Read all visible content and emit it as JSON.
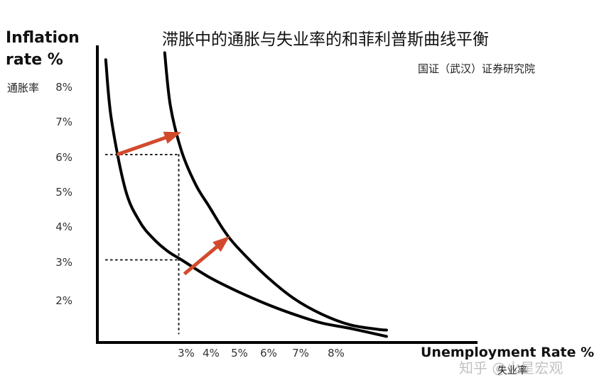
{
  "chart_data": {
    "type": "line",
    "title": "滞胀中的通胀与失业率的和菲利普斯曲线平衡",
    "subtitle": "国证（武汉）证券研究院",
    "ylabel_lines": [
      "Inflation",
      "rate %"
    ],
    "ylabel_cn": "通胀率",
    "xlabel": "Unemployment Rate %",
    "xlabel_cn": "失业率",
    "y_ticks": [
      "8%",
      "7%",
      "6%",
      "5%",
      "4%",
      "3%",
      "2%"
    ],
    "x_ticks": [
      "3%",
      "4%",
      "5%",
      "6%",
      "7%",
      "8%"
    ],
    "xlim": [
      0,
      10.6
    ],
    "ylim": [
      0,
      8.5
    ],
    "series": [
      {
        "x": [
          0.3,
          0.5,
          1.0,
          1.5,
          2.0,
          2.5,
          3.0,
          4.0,
          5.0,
          6.0,
          7.0,
          8.0,
          9.0,
          10.3
        ],
        "y": [
          7.7,
          6.0,
          4.0,
          3.1,
          2.6,
          2.25,
          2.0,
          1.5,
          1.1,
          0.75,
          0.45,
          0.2,
          0.05,
          -0.18
        ]
      },
      {
        "x": [
          2.4,
          2.6,
          3.0,
          3.5,
          4.0,
          4.5,
          5.0,
          6.0,
          7.0,
          8.0,
          9.0,
          10.0,
          10.3
        ],
        "y": [
          7.9,
          6.4,
          5.1,
          4.15,
          3.5,
          2.85,
          2.35,
          1.55,
          0.9,
          0.45,
          0.15,
          0.02,
          0.0
        ]
      }
    ],
    "reference_lines": [
      {
        "from": [
          0.3,
          5.0
        ],
        "to": [
          2.9,
          5.0
        ]
      },
      {
        "from": [
          2.9,
          5.0
        ],
        "to": [
          2.9,
          -0.1
        ]
      },
      {
        "from": [
          0.3,
          2.0
        ],
        "to": [
          2.9,
          2.0
        ]
      }
    ],
    "arrows": [
      {
        "from": [
          0.7,
          5.0
        ],
        "to": [
          2.85,
          5.6
        ],
        "color": "#d24a2c"
      },
      {
        "from": [
          3.1,
          1.6
        ],
        "to": [
          4.6,
          2.6
        ],
        "color": "#d24a2c"
      }
    ]
  },
  "watermark": "知乎 @火星宏观"
}
